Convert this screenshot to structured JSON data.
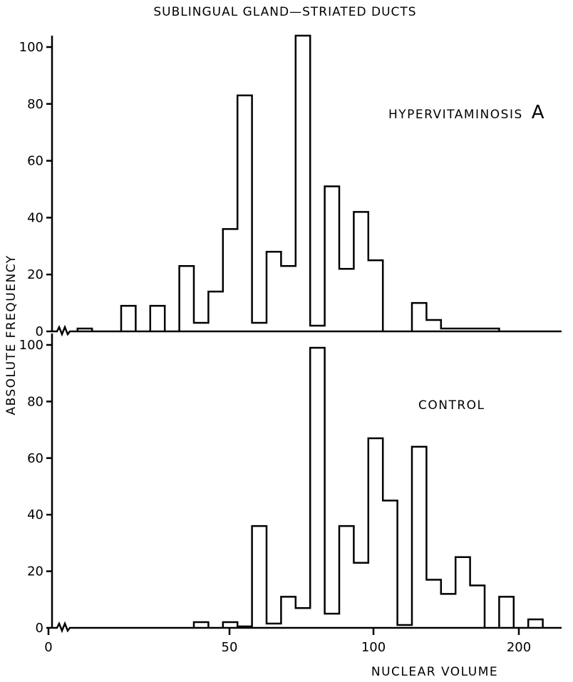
{
  "chart_data": {
    "title": "SUBLINGUAL GLAND—STRIATED DUCTS",
    "ylabel": "ABSOLUTE FREQUENCY",
    "xlabel": "NUCLEAR VOLUME",
    "x_ticks": [
      "0",
      "50",
      "100",
      "200"
    ],
    "y_ticks": [
      "0",
      "20",
      "40",
      "60",
      "80",
      "100"
    ],
    "panels": [
      {
        "type": "bar",
        "name_main": "HYPERVITAMINOSIS",
        "name_letter": "A",
        "bin_width": 5,
        "xlim": [
          0,
          200
        ],
        "ylim": [
          0,
          100
        ],
        "bins": [
          {
            "x0": 10,
            "value": 1
          },
          {
            "x0": 25,
            "value": 9
          },
          {
            "x0": 35,
            "value": 9
          },
          {
            "x0": 45,
            "value": 23
          },
          {
            "x0": 50,
            "value": 3
          },
          {
            "x0": 55,
            "value": 14
          },
          {
            "x0": 60,
            "value": 36
          },
          {
            "x0": 65,
            "value": 83
          },
          {
            "x0": 70,
            "value": 3
          },
          {
            "x0": 75,
            "value": 28
          },
          {
            "x0": 80,
            "value": 23
          },
          {
            "x0": 85,
            "value": 104
          },
          {
            "x0": 90,
            "value": 2
          },
          {
            "x0": 95,
            "value": 51
          },
          {
            "x0": 100,
            "value": 22
          },
          {
            "x0": 105,
            "value": 42
          },
          {
            "x0": 110,
            "value": 25
          },
          {
            "x0": 125,
            "value": 10
          },
          {
            "x0": 130,
            "value": 4
          },
          {
            "x0": 135,
            "value": 1
          },
          {
            "x0": 140,
            "value": 1
          },
          {
            "x0": 145,
            "value": 1
          },
          {
            "x0": 150,
            "value": 1
          },
          {
            "x0": 185,
            "value": 1
          }
        ]
      },
      {
        "type": "bar",
        "name_main": "CONTROL",
        "name_letter": "",
        "bin_width": 5,
        "xlim": [
          0,
          200
        ],
        "ylim": [
          0,
          100
        ],
        "bins": [
          {
            "x0": 50,
            "value": 2
          },
          {
            "x0": 60,
            "value": 2
          },
          {
            "x0": 65,
            "value": 0.5
          },
          {
            "x0": 70,
            "value": 36
          },
          {
            "x0": 75,
            "value": 1.5
          },
          {
            "x0": 80,
            "value": 11
          },
          {
            "x0": 85,
            "value": 7
          },
          {
            "x0": 90,
            "value": 99
          },
          {
            "x0": 95,
            "value": 5
          },
          {
            "x0": 100,
            "value": 36
          },
          {
            "x0": 105,
            "value": 23
          },
          {
            "x0": 110,
            "value": 67
          },
          {
            "x0": 115,
            "value": 45
          },
          {
            "x0": 120,
            "value": 1
          },
          {
            "x0": 125,
            "value": 64
          },
          {
            "x0": 130,
            "value": 17
          },
          {
            "x0": 135,
            "value": 12
          },
          {
            "x0": 140,
            "value": 25
          },
          {
            "x0": 145,
            "value": 15
          },
          {
            "x0": 155,
            "value": 11
          },
          {
            "x0": 165,
            "value": 3
          }
        ]
      }
    ]
  }
}
